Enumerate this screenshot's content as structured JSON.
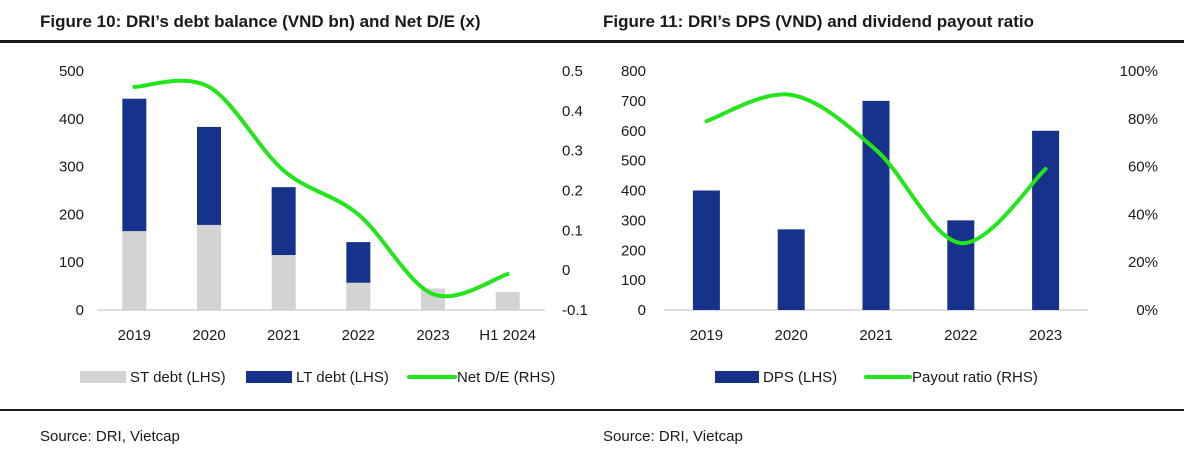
{
  "figure1": {
    "title": "Figure 10: DRI’s debt balance (VND bn) and Net D/E (x)",
    "source": "Source: DRI, Vietcap"
  },
  "figure2": {
    "title": "Figure 11:  DRI’s DPS (VND) and dividend payout ratio",
    "source": "Source: DRI, Vietcap"
  },
  "colors": {
    "navy": "#17328a",
    "grey": "#d3d3d3",
    "green": "#22e61a",
    "axis": "#bfbfbf"
  },
  "chart_data": [
    {
      "type": "bar",
      "stacked": true,
      "categories": [
        "2019",
        "2020",
        "2021",
        "2022",
        "2023",
        "H1 2024"
      ],
      "series": [
        {
          "name": "ST debt (LHS)",
          "axis": "left",
          "kind": "bar",
          "color": "#d3d3d3",
          "values": [
            165,
            178,
            115,
            57,
            45,
            38
          ]
        },
        {
          "name": "LT debt (LHS)",
          "axis": "left",
          "kind": "bar",
          "color": "#17328a",
          "values": [
            277,
            205,
            142,
            85,
            0,
            0
          ]
        },
        {
          "name": "Net D/E (RHS)",
          "axis": "right",
          "kind": "line",
          "color": "#22e61a",
          "values": [
            0.46,
            0.46,
            0.25,
            0.14,
            -0.06,
            -0.01
          ]
        }
      ],
      "yleft": {
        "min": 0,
        "max": 500,
        "ticks": [
          "500",
          "400",
          "300",
          "200",
          "100",
          "0"
        ]
      },
      "yright": {
        "min": -0.1,
        "max": 0.5,
        "ticks": [
          "0.5",
          "0.4",
          "0.3",
          "0.2",
          "0.1",
          "0",
          "-0.1"
        ]
      },
      "legend_position": "bottom"
    },
    {
      "type": "bar",
      "categories": [
        "2019",
        "2020",
        "2021",
        "2022",
        "2023"
      ],
      "series": [
        {
          "name": "DPS (LHS)",
          "axis": "left",
          "kind": "bar",
          "color": "#17328a",
          "values": [
            400,
            270,
            700,
            300,
            600
          ]
        },
        {
          "name": "Payout ratio (RHS)",
          "axis": "right",
          "kind": "line",
          "color": "#22e61a",
          "values": [
            0.79,
            0.9,
            0.67,
            0.28,
            0.59
          ]
        }
      ],
      "yleft": {
        "min": 0,
        "max": 800,
        "ticks": [
          "800",
          "700",
          "600",
          "500",
          "400",
          "300",
          "200",
          "100",
          "0"
        ]
      },
      "yright": {
        "min": 0,
        "max": 1,
        "ticks": [
          "100%",
          "80%",
          "60%",
          "40%",
          "20%",
          "0%"
        ]
      },
      "legend_position": "bottom"
    }
  ]
}
